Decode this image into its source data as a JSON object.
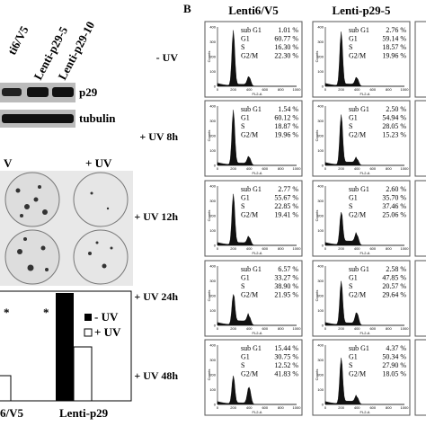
{
  "panel_a": {
    "lanes": [
      "ti6/V5",
      "Lenti-p29-5",
      "Lenti-p29-10"
    ],
    "blot_labels": [
      "p29",
      "tubulin"
    ],
    "plate_labels": [
      "V",
      "+ UV"
    ],
    "asterisks": [
      "*",
      "*"
    ],
    "legend": [
      "- UV",
      "+ UV"
    ],
    "x_labels": [
      "6/V5",
      "Lenti-p29"
    ]
  },
  "panel_b": {
    "letter": "B",
    "conditions": [
      "- UV",
      "+ UV 8h",
      "+ UV 12h",
      "+ UV 24h",
      "+ UV 48h"
    ],
    "phases": [
      "sub G1",
      "G1",
      "S",
      "G2/M"
    ],
    "axis_y": "Counts",
    "axis_x": "FL2-A",
    "yticks": [
      "0",
      "100",
      "200",
      "300",
      "400"
    ],
    "xticks": [
      "0",
      "200",
      "400",
      "600",
      "800",
      "1000"
    ],
    "columns": [
      {
        "name": "Lenti6/V5",
        "rows": [
          [
            "1.01 %",
            "60.77 %",
            "16.30 %",
            "22.30 %"
          ],
          [
            "1.54 %",
            "60.12 %",
            "18.87 %",
            "19.96 %"
          ],
          [
            "2.77 %",
            "55.67 %",
            "22.85 %",
            "19.41 %"
          ],
          [
            "6.57 %",
            "33.27 %",
            "38.90 %",
            "21.95 %"
          ],
          [
            "15.44 %",
            "30.75 %",
            "12.52 %",
            "41.83 %"
          ]
        ]
      },
      {
        "name": "Lenti-p29-5",
        "rows": [
          [
            "2.76 %",
            "59.14 %",
            "18.57 %",
            "19.96 %"
          ],
          [
            "2.50 %",
            "54.94 %",
            "28.05 %",
            "15.23 %"
          ],
          [
            "2.60 %",
            "35.70 %",
            "37.46 %",
            "25.06 %"
          ],
          [
            "2.58 %",
            "47.85 %",
            "20.57 %",
            "29.64 %"
          ],
          [
            "4.37 %",
            "50.34 %",
            "27.90 %",
            "18.05 %"
          ]
        ]
      }
    ]
  }
}
